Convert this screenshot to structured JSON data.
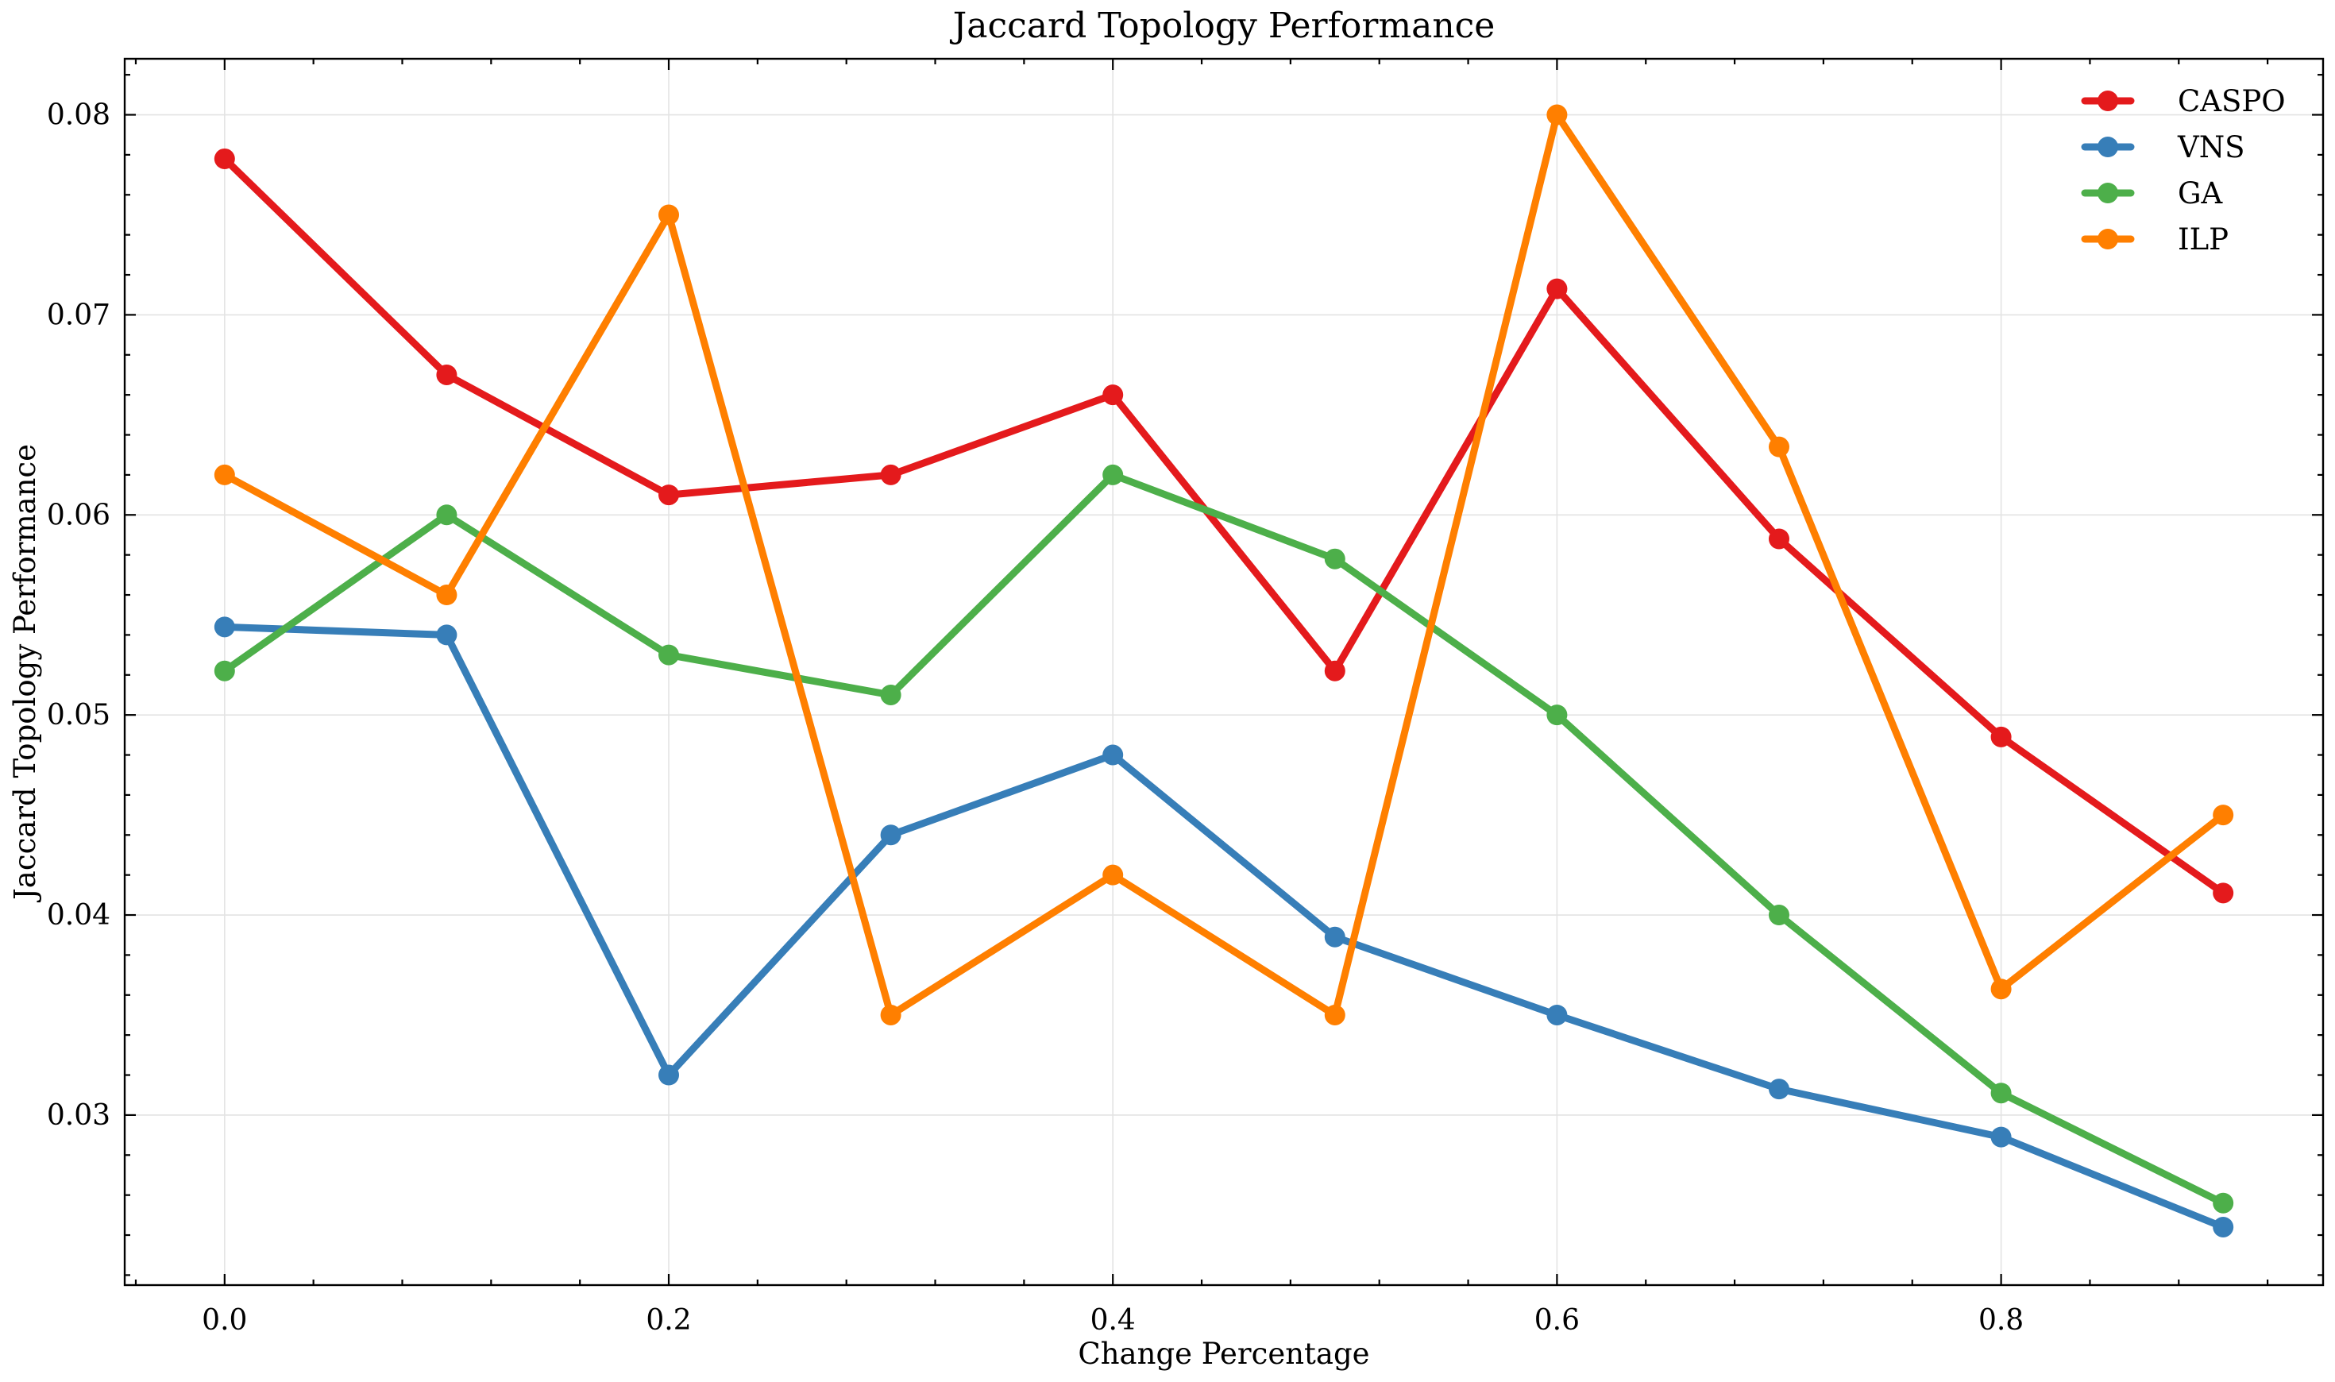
{
  "chart_data": {
    "type": "line",
    "title": "Jaccard Topology Performance",
    "xlabel": "Change Percentage",
    "ylabel": "Jaccard Topology Performance",
    "x": [
      0.0,
      0.1,
      0.2,
      0.3,
      0.4,
      0.5,
      0.6,
      0.7,
      0.8,
      0.9
    ],
    "xlim": [
      -0.045,
      0.945
    ],
    "ylim": [
      0.0215,
      0.0828
    ],
    "xticks": [
      0.0,
      0.2,
      0.4,
      0.6,
      0.8
    ],
    "xtick_labels": [
      "0.0",
      "0.2",
      "0.4",
      "0.6",
      "0.8"
    ],
    "yticks": [
      0.03,
      0.04,
      0.05,
      0.06,
      0.07,
      0.08
    ],
    "ytick_labels": [
      "0.03",
      "0.04",
      "0.05",
      "0.06",
      "0.07",
      "0.08"
    ],
    "grid": true,
    "legend_position": "top-right",
    "series": [
      {
        "name": "CASPO",
        "color": "#e41a1c",
        "values": [
          0.0778,
          0.067,
          0.061,
          0.062,
          0.066,
          0.0522,
          0.0713,
          0.0588,
          0.0489,
          0.0411
        ]
      },
      {
        "name": "VNS",
        "color": "#377eb8",
        "values": [
          0.0544,
          0.054,
          0.032,
          0.044,
          0.048,
          0.0389,
          0.035,
          0.0313,
          0.0289,
          0.0244
        ]
      },
      {
        "name": "GA",
        "color": "#4daf4a",
        "values": [
          0.0522,
          0.06,
          0.053,
          0.051,
          0.062,
          0.0578,
          0.05,
          0.04,
          0.0311,
          0.0256
        ]
      },
      {
        "name": "ILP",
        "color": "#ff7f00",
        "values": [
          0.062,
          0.056,
          0.075,
          0.035,
          0.042,
          0.035,
          0.08,
          0.0634,
          0.0363,
          0.045
        ]
      }
    ]
  }
}
